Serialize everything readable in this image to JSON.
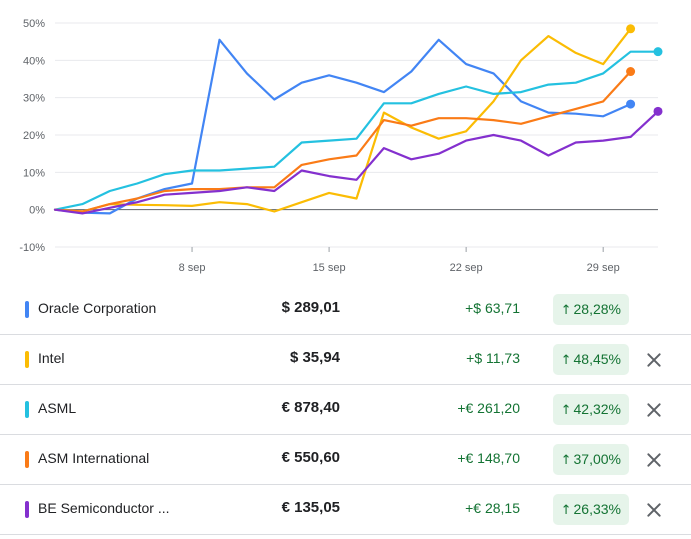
{
  "chart_data": {
    "type": "line",
    "y_ticks": [
      "50%",
      "40%",
      "30%",
      "20%",
      "10%",
      "0%",
      "-10%"
    ],
    "y_tick_values": [
      50,
      40,
      30,
      20,
      10,
      0,
      -10
    ],
    "ylim": [
      -10,
      50
    ],
    "x_ticks": [
      "8 sep",
      "15 sep",
      "22 sep",
      "29 sep"
    ],
    "x_tick_index": [
      5,
      10,
      15,
      20
    ],
    "x_count": 23,
    "grid": true,
    "series": [
      {
        "name": "Oracle Corporation",
        "color": "#4285f4",
        "values": [
          0,
          -0.8,
          -1,
          3,
          5.5,
          7,
          45.5,
          36.5,
          29.5,
          34,
          36,
          34,
          31.5,
          37,
          45.5,
          39,
          36.5,
          29,
          26,
          25.7,
          25,
          28.28
        ]
      },
      {
        "name": "Intel",
        "color": "#fbbc04",
        "values": [
          0,
          -0.5,
          1.5,
          1.3,
          1.2,
          1,
          2,
          1.5,
          -0.5,
          2,
          4.5,
          3,
          26,
          22,
          19,
          21,
          29,
          40,
          46.5,
          42,
          39,
          48.45
        ]
      },
      {
        "name": "ASML",
        "color": "#24c1e0",
        "values": [
          0,
          1.5,
          5,
          7,
          9.5,
          10.5,
          10.5,
          11,
          11.5,
          18,
          18.5,
          19,
          28.5,
          28.5,
          31,
          33,
          31,
          31.5,
          33.5,
          34,
          36.5,
          42.32,
          42.32
        ]
      },
      {
        "name": "ASM International",
        "color": "#fa7b17",
        "values": [
          0,
          -0.5,
          1.5,
          3,
          5,
          5.5,
          5.5,
          6,
          6,
          12,
          13.5,
          14.5,
          24,
          22.5,
          24.5,
          24.5,
          24,
          23,
          25,
          27,
          29,
          37.0
        ]
      },
      {
        "name": "BE Semiconductor Industries",
        "color": "#8430ce",
        "values": [
          0,
          -1,
          0.5,
          2,
          4,
          4.5,
          5,
          6,
          5,
          10.5,
          9,
          8,
          16.5,
          13.5,
          15,
          18.5,
          20,
          18.5,
          14.5,
          18,
          18.5,
          19.5,
          26.33
        ]
      }
    ]
  },
  "rows": [
    {
      "name": "Oracle Corporation",
      "color": "#4285f4",
      "price": "$ 289,01",
      "change": "+$ 63,71",
      "pct": "28,28%",
      "arrow": "↑",
      "removable": false
    },
    {
      "name": "Intel",
      "color": "#fbbc04",
      "price": "$ 35,94",
      "change": "+$ 11,73",
      "pct": "48,45%",
      "arrow": "↑",
      "removable": true
    },
    {
      "name": "ASML",
      "color": "#24c1e0",
      "price": "€ 878,40",
      "change": "+€ 261,20",
      "pct": "42,32%",
      "arrow": "↑",
      "removable": true
    },
    {
      "name": "ASM International",
      "color": "#fa7b17",
      "price": "€ 550,60",
      "change": "+€ 148,70",
      "pct": "37,00%",
      "arrow": "↑",
      "removable": true
    },
    {
      "name": "BE Semiconductor ...",
      "color": "#8430ce",
      "price": "€ 135,05",
      "change": "+€ 28,15",
      "pct": "26,33%",
      "arrow": "↑",
      "removable": true
    }
  ]
}
